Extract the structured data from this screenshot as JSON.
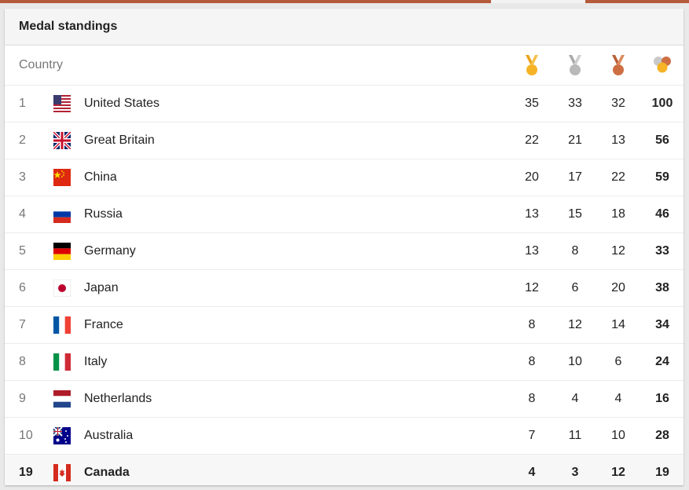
{
  "header": {
    "title": "Medal standings"
  },
  "table": {
    "country_header": "Country",
    "medal_icons": [
      "gold-medal-icon",
      "silver-medal-icon",
      "bronze-medal-icon",
      "total-medals-icon"
    ],
    "rows": [
      {
        "rank": "1",
        "country": "United States",
        "gold": "35",
        "silver": "33",
        "bronze": "32",
        "total": "100"
      },
      {
        "rank": "2",
        "country": "Great Britain",
        "gold": "22",
        "silver": "21",
        "bronze": "13",
        "total": "56"
      },
      {
        "rank": "3",
        "country": "China",
        "gold": "20",
        "silver": "17",
        "bronze": "22",
        "total": "59"
      },
      {
        "rank": "4",
        "country": "Russia",
        "gold": "13",
        "silver": "15",
        "bronze": "18",
        "total": "46"
      },
      {
        "rank": "5",
        "country": "Germany",
        "gold": "13",
        "silver": "8",
        "bronze": "12",
        "total": "33"
      },
      {
        "rank": "6",
        "country": "Japan",
        "gold": "12",
        "silver": "6",
        "bronze": "20",
        "total": "38"
      },
      {
        "rank": "7",
        "country": "France",
        "gold": "8",
        "silver": "12",
        "bronze": "14",
        "total": "34"
      },
      {
        "rank": "8",
        "country": "Italy",
        "gold": "8",
        "silver": "10",
        "bronze": "6",
        "total": "24"
      },
      {
        "rank": "9",
        "country": "Netherlands",
        "gold": "8",
        "silver": "4",
        "bronze": "4",
        "total": "16"
      },
      {
        "rank": "10",
        "country": "Australia",
        "gold": "7",
        "silver": "11",
        "bronze": "10",
        "total": "28"
      }
    ],
    "highlight_row": {
      "rank": "19",
      "country": "Canada",
      "gold": "4",
      "silver": "3",
      "bronze": "12",
      "total": "19"
    }
  },
  "colors": {
    "gold": "#f5b325",
    "silver": "#b9b9b9",
    "bronze": "#cd6f42",
    "accent_bar": "#b55a3a"
  }
}
